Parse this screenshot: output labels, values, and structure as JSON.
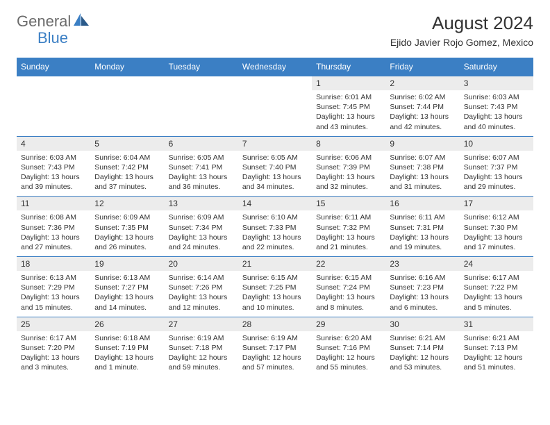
{
  "brand": {
    "name_a": "General",
    "name_b": "Blue"
  },
  "title": "August 2024",
  "subtitle": "Ejido Javier Rojo Gomez, Mexico",
  "colors": {
    "header_bg": "#3b7fc4",
    "header_text": "#ffffff",
    "daynum_bg": "#ececec",
    "body_text": "#333333",
    "logo_gray": "#6b6b6b",
    "logo_blue": "#3b7fc4"
  },
  "weekday_labels": [
    "Sunday",
    "Monday",
    "Tuesday",
    "Wednesday",
    "Thursday",
    "Friday",
    "Saturday"
  ],
  "weeks": [
    [
      null,
      null,
      null,
      null,
      {
        "n": "1",
        "sunrise": "6:01 AM",
        "sunset": "7:45 PM",
        "dl": "13 hours and 43 minutes."
      },
      {
        "n": "2",
        "sunrise": "6:02 AM",
        "sunset": "7:44 PM",
        "dl": "13 hours and 42 minutes."
      },
      {
        "n": "3",
        "sunrise": "6:03 AM",
        "sunset": "7:43 PM",
        "dl": "13 hours and 40 minutes."
      }
    ],
    [
      {
        "n": "4",
        "sunrise": "6:03 AM",
        "sunset": "7:43 PM",
        "dl": "13 hours and 39 minutes."
      },
      {
        "n": "5",
        "sunrise": "6:04 AM",
        "sunset": "7:42 PM",
        "dl": "13 hours and 37 minutes."
      },
      {
        "n": "6",
        "sunrise": "6:05 AM",
        "sunset": "7:41 PM",
        "dl": "13 hours and 36 minutes."
      },
      {
        "n": "7",
        "sunrise": "6:05 AM",
        "sunset": "7:40 PM",
        "dl": "13 hours and 34 minutes."
      },
      {
        "n": "8",
        "sunrise": "6:06 AM",
        "sunset": "7:39 PM",
        "dl": "13 hours and 32 minutes."
      },
      {
        "n": "9",
        "sunrise": "6:07 AM",
        "sunset": "7:38 PM",
        "dl": "13 hours and 31 minutes."
      },
      {
        "n": "10",
        "sunrise": "6:07 AM",
        "sunset": "7:37 PM",
        "dl": "13 hours and 29 minutes."
      }
    ],
    [
      {
        "n": "11",
        "sunrise": "6:08 AM",
        "sunset": "7:36 PM",
        "dl": "13 hours and 27 minutes."
      },
      {
        "n": "12",
        "sunrise": "6:09 AM",
        "sunset": "7:35 PM",
        "dl": "13 hours and 26 minutes."
      },
      {
        "n": "13",
        "sunrise": "6:09 AM",
        "sunset": "7:34 PM",
        "dl": "13 hours and 24 minutes."
      },
      {
        "n": "14",
        "sunrise": "6:10 AM",
        "sunset": "7:33 PM",
        "dl": "13 hours and 22 minutes."
      },
      {
        "n": "15",
        "sunrise": "6:11 AM",
        "sunset": "7:32 PM",
        "dl": "13 hours and 21 minutes."
      },
      {
        "n": "16",
        "sunrise": "6:11 AM",
        "sunset": "7:31 PM",
        "dl": "13 hours and 19 minutes."
      },
      {
        "n": "17",
        "sunrise": "6:12 AM",
        "sunset": "7:30 PM",
        "dl": "13 hours and 17 minutes."
      }
    ],
    [
      {
        "n": "18",
        "sunrise": "6:13 AM",
        "sunset": "7:29 PM",
        "dl": "13 hours and 15 minutes."
      },
      {
        "n": "19",
        "sunrise": "6:13 AM",
        "sunset": "7:27 PM",
        "dl": "13 hours and 14 minutes."
      },
      {
        "n": "20",
        "sunrise": "6:14 AM",
        "sunset": "7:26 PM",
        "dl": "13 hours and 12 minutes."
      },
      {
        "n": "21",
        "sunrise": "6:15 AM",
        "sunset": "7:25 PM",
        "dl": "13 hours and 10 minutes."
      },
      {
        "n": "22",
        "sunrise": "6:15 AM",
        "sunset": "7:24 PM",
        "dl": "13 hours and 8 minutes."
      },
      {
        "n": "23",
        "sunrise": "6:16 AM",
        "sunset": "7:23 PM",
        "dl": "13 hours and 6 minutes."
      },
      {
        "n": "24",
        "sunrise": "6:17 AM",
        "sunset": "7:22 PM",
        "dl": "13 hours and 5 minutes."
      }
    ],
    [
      {
        "n": "25",
        "sunrise": "6:17 AM",
        "sunset": "7:20 PM",
        "dl": "13 hours and 3 minutes."
      },
      {
        "n": "26",
        "sunrise": "6:18 AM",
        "sunset": "7:19 PM",
        "dl": "13 hours and 1 minute."
      },
      {
        "n": "27",
        "sunrise": "6:19 AM",
        "sunset": "7:18 PM",
        "dl": "12 hours and 59 minutes."
      },
      {
        "n": "28",
        "sunrise": "6:19 AM",
        "sunset": "7:17 PM",
        "dl": "12 hours and 57 minutes."
      },
      {
        "n": "29",
        "sunrise": "6:20 AM",
        "sunset": "7:16 PM",
        "dl": "12 hours and 55 minutes."
      },
      {
        "n": "30",
        "sunrise": "6:21 AM",
        "sunset": "7:14 PM",
        "dl": "12 hours and 53 minutes."
      },
      {
        "n": "31",
        "sunrise": "6:21 AM",
        "sunset": "7:13 PM",
        "dl": "12 hours and 51 minutes."
      }
    ]
  ],
  "labels": {
    "sunrise": "Sunrise:",
    "sunset": "Sunset:",
    "daylight": "Daylight:"
  }
}
